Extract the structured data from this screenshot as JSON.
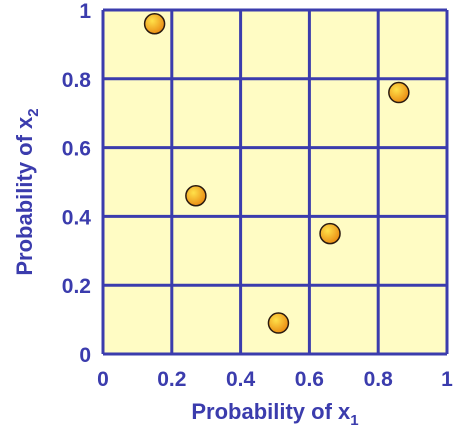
{
  "chart_data": {
    "type": "scatter",
    "title": "",
    "xlabel": "Probability of x",
    "xlabel_sub": "1",
    "ylabel": "Probability of x",
    "ylabel_sub": "2",
    "xlim": [
      0,
      1
    ],
    "ylim": [
      0,
      1
    ],
    "x_ticks": [
      "0",
      "0.2",
      "0.4",
      "0.6",
      "0.8",
      "1"
    ],
    "y_ticks": [
      "0",
      "0.2",
      "0.4",
      "0.6",
      "0.8",
      "1"
    ],
    "grid": true,
    "points": [
      {
        "x": 0.15,
        "y": 0.96
      },
      {
        "x": 0.27,
        "y": 0.46
      },
      {
        "x": 0.51,
        "y": 0.09
      },
      {
        "x": 0.66,
        "y": 0.35
      },
      {
        "x": 0.86,
        "y": 0.76
      }
    ]
  },
  "colors": {
    "plot_background": "#fffcc4",
    "grid_line": "#3b3cad",
    "text": "#3b3cad",
    "marker_fill_light": "#ffe14a",
    "marker_fill_dark": "#e98810",
    "marker_outline": "#2a1a10"
  }
}
